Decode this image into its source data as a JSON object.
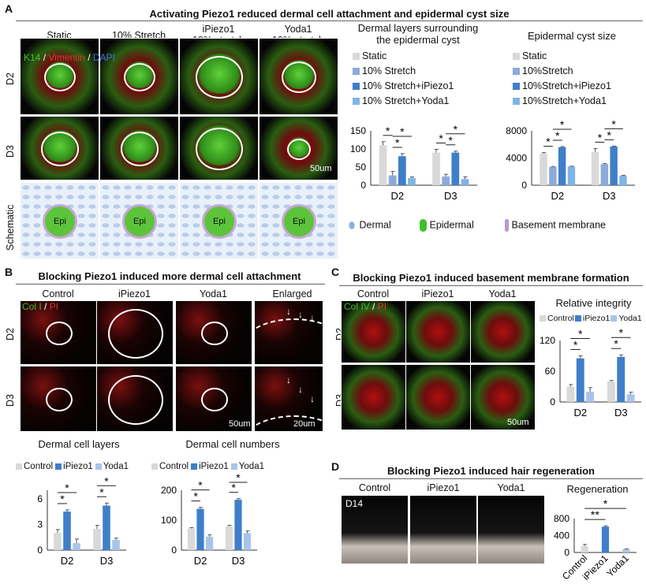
{
  "panels": {
    "A": {
      "label": "A",
      "title": "Activating Piezo1 reduced dermal cell attachment and epidermal cyst size",
      "columns": [
        [
          "Static",
          ""
        ],
        [
          "10% Stretch",
          ""
        ],
        [
          "iPiezo1",
          "10% stretch"
        ],
        [
          "Yoda1",
          "10% stretch"
        ]
      ],
      "rows": [
        "D2",
        "D3",
        "Schematic"
      ],
      "stain": {
        "k14": "K14",
        "sep": " / ",
        "vim": "Vimentin",
        "dapi": "DAPI"
      },
      "scalebar": "50um",
      "epi_label": "Epi",
      "chart1_title": [
        "Dermal layers surrounding",
        "the epidermal cyst"
      ],
      "chart2_title": "Epidermal cyst size",
      "schematic_legend": [
        "Dermal",
        "Epidermal",
        "Basement membrane"
      ]
    },
    "B": {
      "label": "B",
      "title": "Blocking Piezo1 induced more dermal cell attachment",
      "columns": [
        "Control",
        "iPiezo1",
        "Yoda1",
        "Enlarged"
      ],
      "rows": [
        "D2",
        "D3"
      ],
      "stain": {
        "col": "Col I",
        "sep": " / ",
        "pi": "PI"
      },
      "scalebar": "50um",
      "scalebar2": "20um",
      "chart1_title": "Dermal cell layers",
      "chart2_title": "Dermal cell numbers"
    },
    "C": {
      "label": "C",
      "title": "Blocking Piezo1 induced basement membrane formation",
      "columns": [
        "Control",
        "iPiezo1",
        "Yoda1"
      ],
      "rows": [
        "D2",
        "D3"
      ],
      "stain": {
        "col": "Col IV",
        "sep": " / ",
        "pi": "PI"
      },
      "scalebar": "50um",
      "chart_title": "Relative integrity"
    },
    "D": {
      "label": "D",
      "title": "Blocking Piezo1 induced hair regeneration",
      "columns": [
        "Control",
        "iPiezo1",
        "Yoda1"
      ],
      "day": "D14",
      "chart_title": "Regeneration"
    }
  },
  "colors": {
    "grey": "#d9d9d9",
    "periwinkle": "#8eaadb",
    "blue": "#3f7fc9",
    "light_blue": "#7fb4e6",
    "green": "#3fbf2a",
    "red": "#e23030",
    "dapi": "#4a6de0"
  },
  "chart_data": [
    {
      "type": "bar",
      "title": "",
      "categories": [
        "D2",
        "D3"
      ],
      "ylim": [
        0,
        150
      ],
      "yticks": [
        0,
        50,
        100,
        150
      ],
      "series": [
        {
          "name": "Static",
          "values": [
            110,
            90
          ],
          "errors": [
            10,
            9
          ],
          "color": "#d9d9d9"
        },
        {
          "name": "10% Stretch",
          "values": [
            27,
            24
          ],
          "errors": [
            11,
            6
          ],
          "color": "#8eaadb"
        },
        {
          "name": "10% Stretch+iPiezo1",
          "values": [
            80,
            90
          ],
          "errors": [
            7,
            4
          ],
          "color": "#3f7fc9"
        },
        {
          "name": "10% Stretch+Yoda1",
          "values": [
            20,
            17
          ],
          "errors": [
            3,
            6
          ],
          "color": "#7fb4e6"
        }
      ],
      "significance": [
        [
          0,
          0,
          1,
          "*"
        ],
        [
          0,
          1,
          3,
          "*"
        ],
        [
          0,
          1,
          2,
          "*"
        ],
        [
          1,
          0,
          1,
          "*"
        ],
        [
          1,
          1,
          2,
          "*"
        ],
        [
          1,
          1,
          3,
          "*"
        ]
      ]
    },
    {
      "type": "bar",
      "title": "",
      "categories": [
        "D2",
        "D3"
      ],
      "ylim": [
        0,
        8000
      ],
      "yticks": [
        0,
        4000,
        8000
      ],
      "series": [
        {
          "name": "Static",
          "values": [
            4700,
            4900
          ],
          "errors": [
            100,
            500
          ],
          "color": "#d9d9d9"
        },
        {
          "name": "10%Stretch",
          "values": [
            2700,
            3100
          ],
          "errors": [
            60,
            80
          ],
          "color": "#8eaadb"
        },
        {
          "name": "10%Stretch+iPiezo1",
          "values": [
            5600,
            5700
          ],
          "errors": [
            80,
            60
          ],
          "color": "#3f7fc9"
        },
        {
          "name": "10%Stretch+Yoda1",
          "values": [
            2750,
            1400
          ],
          "errors": [
            50,
            50
          ],
          "color": "#7fb4e6"
        }
      ],
      "significance": [
        [
          0,
          0,
          1,
          "*"
        ],
        [
          0,
          1,
          2,
          "*"
        ],
        [
          0,
          1,
          3,
          "*"
        ],
        [
          1,
          0,
          1,
          "*"
        ],
        [
          1,
          1,
          2,
          "*"
        ],
        [
          1,
          1,
          3,
          "*"
        ]
      ]
    },
    {
      "type": "bar",
      "title": "Dermal cell layers",
      "categories": [
        "D2",
        "D3"
      ],
      "ylim": [
        0,
        7
      ],
      "yticks": [
        0,
        3,
        6
      ],
      "series": [
        {
          "name": "Control",
          "values": [
            2,
            2.5
          ],
          "errors": [
            0.4,
            0.4
          ],
          "color": "#d9d9d9"
        },
        {
          "name": "iPiezo1",
          "values": [
            4.5,
            5.2
          ],
          "errors": [
            0.2,
            0.3
          ],
          "color": "#3f7fc9"
        },
        {
          "name": "Yoda1",
          "values": [
            0.8,
            1.2
          ],
          "errors": [
            0.5,
            0.2
          ],
          "color": "#a9c4ea"
        }
      ],
      "significance": [
        [
          0,
          0,
          1,
          "*"
        ],
        [
          0,
          0,
          2,
          "*"
        ],
        [
          1,
          0,
          1,
          "*"
        ],
        [
          1,
          0,
          2,
          "*"
        ]
      ]
    },
    {
      "type": "bar",
      "title": "Dermal cell numbers",
      "categories": [
        "D2",
        "D3"
      ],
      "ylim": [
        0,
        200
      ],
      "yticks": [
        0,
        100,
        200
      ],
      "series": [
        {
          "name": "Control",
          "values": [
            73,
            80
          ],
          "errors": [
            2,
            3
          ],
          "color": "#d9d9d9"
        },
        {
          "name": "iPiezo1",
          "values": [
            138,
            168
          ],
          "errors": [
            5,
            4
          ],
          "color": "#3f7fc9"
        },
        {
          "name": "Yoda1",
          "values": [
            45,
            57
          ],
          "errors": [
            6,
            7
          ],
          "color": "#a9c4ea"
        }
      ],
      "significance": [
        [
          0,
          0,
          1,
          "*"
        ],
        [
          0,
          0,
          2,
          "*"
        ],
        [
          1,
          0,
          1,
          "*"
        ],
        [
          1,
          0,
          2,
          "*"
        ]
      ]
    },
    {
      "type": "bar",
      "title": "Relative integrity",
      "categories": [
        "D2",
        "D3"
      ],
      "ylim": [
        0,
        120
      ],
      "yticks": [
        0,
        60,
        120
      ],
      "series": [
        {
          "name": "Control",
          "values": [
            30,
            40
          ],
          "errors": [
            4,
            2
          ],
          "color": "#d9d9d9"
        },
        {
          "name": "iPiezo1",
          "values": [
            85,
            88
          ],
          "errors": [
            5,
            4
          ],
          "color": "#3f7fc9"
        },
        {
          "name": "Yoda1",
          "values": [
            20,
            15
          ],
          "errors": [
            8,
            4
          ],
          "color": "#a9c4ea"
        }
      ],
      "significance": [
        [
          0,
          0,
          1,
          "*"
        ],
        [
          0,
          0,
          2,
          "*"
        ],
        [
          1,
          0,
          1,
          "*"
        ],
        [
          1,
          0,
          2,
          "*"
        ]
      ]
    },
    {
      "type": "bar",
      "title": "Regeneration",
      "categories": [
        "Control",
        "iPiezo1",
        "Yoda1"
      ],
      "ylim": [
        0,
        800
      ],
      "yticks": [
        0,
        400,
        800
      ],
      "series": [
        {
          "name": "",
          "values": [
            150,
            610,
            80
          ],
          "errors": [
            40,
            20,
            8
          ],
          "colors": [
            "#d9d9d9",
            "#3f7fc9",
            "#a9c4ea"
          ]
        }
      ],
      "significance": [
        [
          0,
          0,
          1,
          "**"
        ],
        [
          0,
          0,
          2,
          "*"
        ]
      ]
    }
  ]
}
